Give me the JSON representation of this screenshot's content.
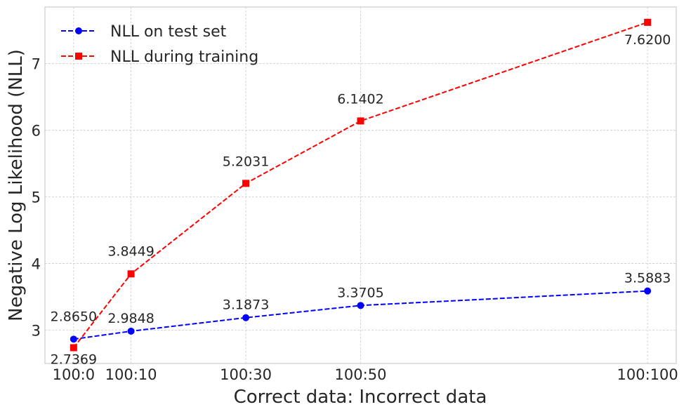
{
  "chart_data": {
    "type": "line",
    "xlabel": "Correct data: Incorrect data",
    "ylabel": "Negative Log Likelihood (NLL)",
    "x": [
      0,
      10,
      30,
      50,
      100
    ],
    "categories": [
      "100:0",
      "100:10",
      "100:30",
      "100:50",
      "100:100"
    ],
    "xlim": [
      -5,
      105
    ],
    "ylim": [
      2.5,
      7.85
    ],
    "yticks": [
      3,
      4,
      5,
      6,
      7
    ],
    "grid": true,
    "legend_position": "top-left",
    "series": [
      {
        "name": "NLL on test set",
        "color": "#0000ff",
        "marker": "circle",
        "linestyle": "dashed",
        "values": [
          2.865,
          2.9848,
          3.1873,
          3.3705,
          3.5883
        ],
        "labels": [
          "2.8650",
          "2.9848",
          "3.1873",
          "3.3705",
          "3.5883"
        ]
      },
      {
        "name": "NLL during training",
        "color": "#ff0000",
        "marker": "square",
        "linestyle": "dashed",
        "values": [
          2.7369,
          3.8449,
          5.2031,
          6.1402,
          7.62
        ],
        "labels": [
          "2.7369",
          "3.8449",
          "5.2031",
          "6.1402",
          "7.6200"
        ]
      }
    ]
  }
}
